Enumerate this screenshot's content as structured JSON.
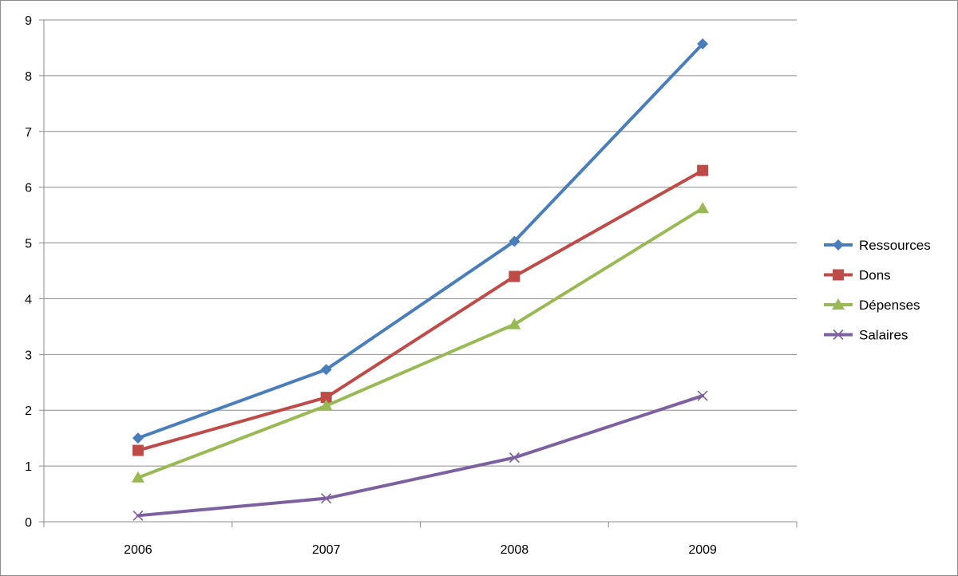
{
  "chart_data": {
    "type": "line",
    "title": "",
    "xlabel": "",
    "ylabel": "",
    "categories": [
      "2006",
      "2007",
      "2008",
      "2009"
    ],
    "ylim": [
      0,
      9
    ],
    "yticks": [
      0,
      1,
      2,
      3,
      4,
      5,
      6,
      7,
      8,
      9
    ],
    "grid": true,
    "legend": "right",
    "series": [
      {
        "name": "Ressources",
        "values": [
          1.5,
          2.73,
          5.03,
          8.57
        ],
        "color": "#4a7ebb",
        "marker": "diamond"
      },
      {
        "name": "Dons",
        "values": [
          1.28,
          2.23,
          4.4,
          6.3
        ],
        "color": "#be4b48",
        "marker": "square"
      },
      {
        "name": "Dépenses",
        "values": [
          0.79,
          2.08,
          3.54,
          5.62
        ],
        "color": "#98b954",
        "marker": "triangle"
      },
      {
        "name": "Salaires",
        "values": [
          0.11,
          0.42,
          1.15,
          2.26
        ],
        "color": "#7d60a0",
        "marker": "x"
      }
    ]
  }
}
